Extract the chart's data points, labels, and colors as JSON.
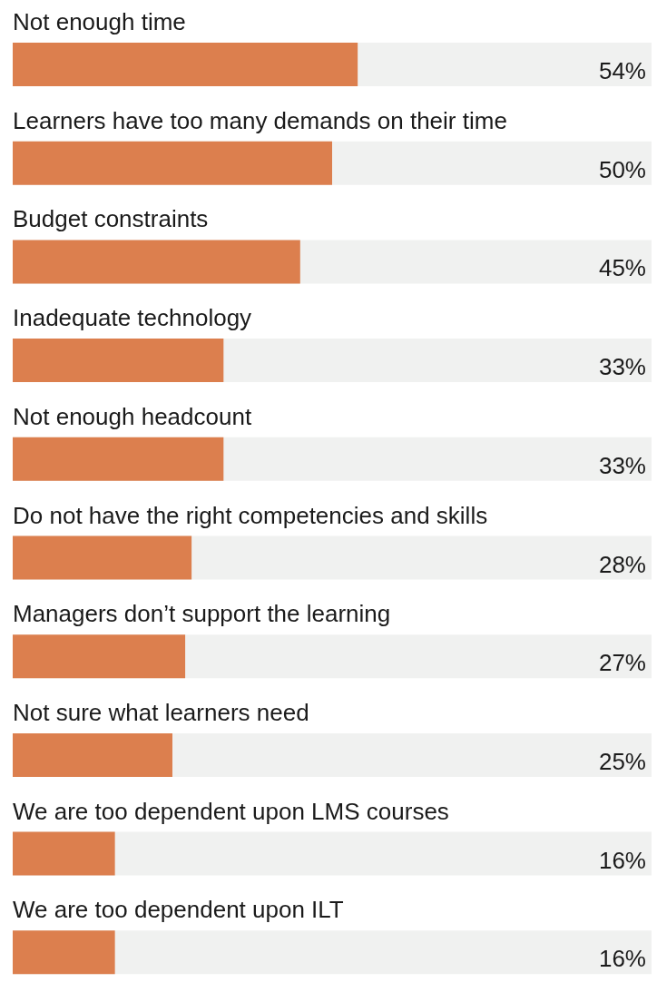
{
  "chart_data": {
    "type": "bar",
    "orientation": "horizontal",
    "categories": [
      "Not enough time",
      "Learners have too many demands on their time",
      "Budget constraints",
      "Inadequate technology",
      "Not enough headcount",
      "Do not have the right competencies and skills",
      "Managers don’t support the learning",
      "Not sure what learners need",
      "We are too dependent upon LMS courses",
      "We are too dependent upon ILT"
    ],
    "values": [
      54,
      50,
      45,
      33,
      33,
      28,
      27,
      25,
      16,
      16
    ],
    "value_labels": [
      "54%",
      "50%",
      "45%",
      "33%",
      "33%",
      "28%",
      "27%",
      "25%",
      "16%",
      "16%"
    ],
    "color": "#dc7f4e",
    "xlim": [
      0,
      100
    ],
    "tick_labels": false
  }
}
